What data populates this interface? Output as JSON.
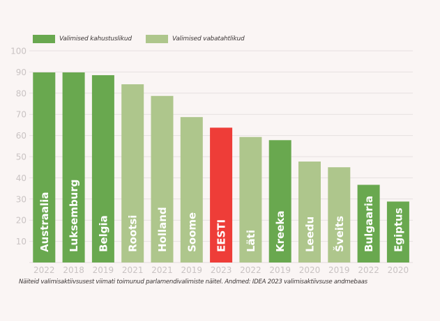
{
  "chart_data": {
    "type": "bar",
    "title": "",
    "xlabel": "",
    "ylabel": "",
    "ylim": [
      0,
      100
    ],
    "yticks": [
      10,
      20,
      30,
      40,
      50,
      60,
      70,
      80,
      90,
      100
    ],
    "grid": true,
    "legend_position": "top-left",
    "legend": [
      {
        "label": "Valimised kahustuslikud",
        "color": "#69a84f",
        "key": "compulsory"
      },
      {
        "label": "Valimised vabatahtlikud",
        "color": "#aec68c",
        "key": "voluntary"
      }
    ],
    "highlight_color": "#ee3d38",
    "categories": [
      "Austraalia",
      "Luksemburg",
      "Belgia",
      "Rootsi",
      "Holland",
      "Soome",
      "EESTI",
      "Läti",
      "Kreeka",
      "Leedu",
      "Šveits",
      "Bulgaaria",
      "Egiptus"
    ],
    "years": [
      "2022",
      "2018",
      "2019",
      "2021",
      "2021",
      "2019",
      "2023",
      "2022",
      "2019",
      "2020",
      "2019",
      "2022",
      "2020"
    ],
    "types": [
      "compulsory",
      "compulsory",
      "compulsory",
      "voluntary",
      "voluntary",
      "voluntary",
      "highlight",
      "voluntary",
      "compulsory",
      "voluntary",
      "voluntary",
      "compulsory",
      "compulsory"
    ],
    "values": [
      89.8,
      89.8,
      88.5,
      84.2,
      78.7,
      68.7,
      63.7,
      59.3,
      57.8,
      47.7,
      45.0,
      36.7,
      28.8
    ]
  },
  "caption": "Näiteid valimisaktiivsusest viimati toimunud parlamendivalimiste näitel. Andmed: IDEA 2023 valimisaktiivsuse andmebaas"
}
